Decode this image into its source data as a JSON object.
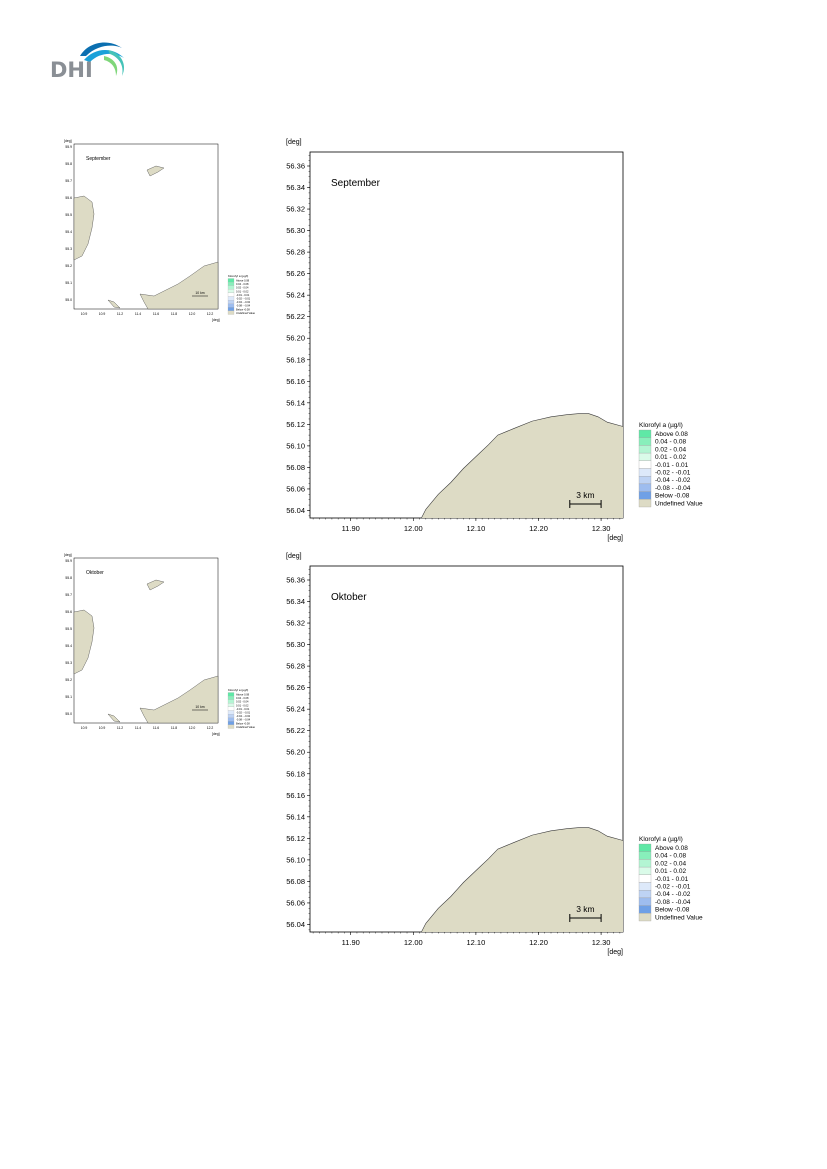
{
  "logo": {
    "text": "DHI"
  },
  "maps": [
    {
      "month": "September",
      "thumb": {
        "y_ticks": [
          "55.9",
          "55.8",
          "55.7",
          "55.6",
          "55.5",
          "55.4",
          "55.3",
          "55.2",
          "55.1",
          "55.0"
        ],
        "x_ticks": [
          "10.9",
          "10.9",
          "11.2",
          "11.4",
          "11.6",
          "11.8",
          "12.0",
          "12.2"
        ],
        "scale": "10 km"
      }
    },
    {
      "month": "Oktober",
      "thumb": {
        "y_ticks": [
          "55.9",
          "55.8",
          "55.7",
          "55.6",
          "55.5",
          "55.4",
          "55.3",
          "55.2",
          "55.1",
          "55.0"
        ],
        "x_ticks": [
          "10.9",
          "10.9",
          "11.2",
          "11.4",
          "11.6",
          "11.8",
          "12.0",
          "12.2"
        ],
        "scale": "10 km"
      }
    }
  ],
  "map_common": {
    "unit_y": "[deg]",
    "unit_x": "[deg]",
    "y_ticks": [
      "56.36",
      "56.34",
      "56.32",
      "56.30",
      "56.28",
      "56.26",
      "56.24",
      "56.22",
      "56.20",
      "56.18",
      "56.16",
      "56.14",
      "56.12",
      "56.10",
      "56.08",
      "56.06",
      "56.04"
    ],
    "x_ticks": [
      "11.90",
      "12.00",
      "12.10",
      "12.20",
      "12.30"
    ],
    "x_range": [
      11.835,
      12.335
    ],
    "y_range": [
      56.033,
      56.373
    ],
    "scale_bar": "3 km",
    "land_color": "#dddbc5",
    "coast_color": "#3a3a3a"
  },
  "legend": {
    "title": "Klorofyl a (µg/l)",
    "items": [
      {
        "label": "Above  0.08",
        "color": "#5fe8a6"
      },
      {
        "label": "0.04 -  0.08",
        "color": "#88efbb"
      },
      {
        "label": "0.02 -  0.04",
        "color": "#b3f5d3"
      },
      {
        "label": "0.01 -  0.02",
        "color": "#dafbe9"
      },
      {
        "label": "-0.01 -  0.01",
        "color": "#ffffff"
      },
      {
        "label": "-0.02 - -0.01",
        "color": "#dde9fa"
      },
      {
        "label": "-0.04 - -0.02",
        "color": "#bed3f4"
      },
      {
        "label": "-0.08 - -0.04",
        "color": "#9ebdef"
      },
      {
        "label": "Below -0.08",
        "color": "#6fa0e6"
      },
      {
        "label": "Undefined Value",
        "color": "#dddbc5"
      }
    ]
  }
}
